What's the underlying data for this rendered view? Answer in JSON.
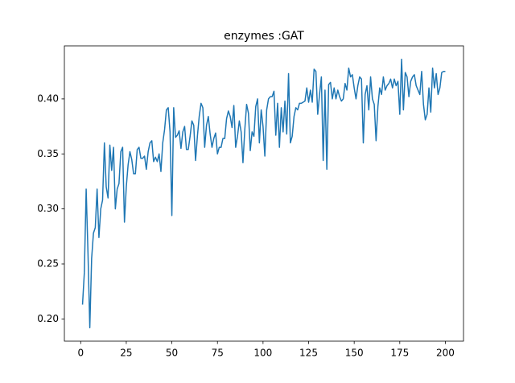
{
  "chart_data": {
    "type": "line",
    "title": "enzymes :GAT",
    "x": [
      1,
      2,
      3,
      4,
      5,
      6,
      7,
      8,
      9,
      10,
      11,
      12,
      13,
      14,
      15,
      16,
      17,
      18,
      19,
      20,
      21,
      22,
      23,
      24,
      25,
      26,
      27,
      28,
      29,
      30,
      31,
      32,
      33,
      34,
      35,
      36,
      37,
      38,
      39,
      40,
      41,
      42,
      43,
      44,
      45,
      46,
      47,
      48,
      49,
      50,
      51,
      52,
      53,
      54,
      55,
      56,
      57,
      58,
      59,
      60,
      61,
      62,
      63,
      64,
      65,
      66,
      67,
      68,
      69,
      70,
      71,
      72,
      73,
      74,
      75,
      76,
      77,
      78,
      79,
      80,
      81,
      82,
      83,
      84,
      85,
      86,
      87,
      88,
      89,
      90,
      91,
      92,
      93,
      94,
      95,
      96,
      97,
      98,
      99,
      100,
      101,
      102,
      103,
      104,
      105,
      106,
      107,
      108,
      109,
      110,
      111,
      112,
      113,
      114,
      115,
      116,
      117,
      118,
      119,
      120,
      121,
      122,
      123,
      124,
      125,
      126,
      127,
      128,
      129,
      130,
      131,
      132,
      133,
      134,
      135,
      136,
      137,
      138,
      139,
      140,
      141,
      142,
      143,
      144,
      145,
      146,
      147,
      148,
      149,
      150,
      151,
      152,
      153,
      154,
      155,
      156,
      157,
      158,
      159,
      160,
      161,
      162,
      163,
      164,
      165,
      166,
      167,
      168,
      169,
      170,
      171,
      172,
      173,
      174,
      175,
      176,
      177,
      178,
      179,
      180,
      181,
      182,
      183,
      184,
      185,
      186,
      187,
      188,
      189,
      190,
      191,
      192,
      193,
      194,
      195,
      196,
      197,
      198,
      199,
      200
    ],
    "series": [
      {
        "color": "#1f77b4",
        "values": [
          0.213,
          0.242,
          0.318,
          0.26,
          0.192,
          0.255,
          0.278,
          0.283,
          0.318,
          0.274,
          0.3,
          0.308,
          0.36,
          0.32,
          0.31,
          0.358,
          0.335,
          0.356,
          0.3,
          0.318,
          0.323,
          0.352,
          0.356,
          0.288,
          0.32,
          0.34,
          0.352,
          0.345,
          0.332,
          0.332,
          0.354,
          0.356,
          0.346,
          0.346,
          0.348,
          0.336,
          0.352,
          0.36,
          0.362,
          0.343,
          0.347,
          0.343,
          0.35,
          0.334,
          0.36,
          0.372,
          0.39,
          0.392,
          0.37,
          0.294,
          0.392,
          0.365,
          0.367,
          0.371,
          0.355,
          0.37,
          0.375,
          0.354,
          0.354,
          0.366,
          0.38,
          0.376,
          0.344,
          0.366,
          0.384,
          0.396,
          0.392,
          0.356,
          0.376,
          0.384,
          0.368,
          0.356,
          0.364,
          0.369,
          0.35,
          0.356,
          0.356,
          0.364,
          0.364,
          0.382,
          0.389,
          0.384,
          0.374,
          0.394,
          0.356,
          0.366,
          0.38,
          0.37,
          0.342,
          0.372,
          0.395,
          0.387,
          0.353,
          0.37,
          0.366,
          0.393,
          0.4,
          0.36,
          0.39,
          0.375,
          0.348,
          0.39,
          0.4,
          0.402,
          0.402,
          0.407,
          0.367,
          0.396,
          0.356,
          0.392,
          0.37,
          0.398,
          0.368,
          0.423,
          0.36,
          0.366,
          0.384,
          0.392,
          0.39,
          0.396,
          0.396,
          0.397,
          0.398,
          0.41,
          0.397,
          0.408,
          0.397,
          0.427,
          0.425,
          0.386,
          0.404,
          0.42,
          0.344,
          0.408,
          0.336,
          0.413,
          0.415,
          0.4,
          0.41,
          0.4,
          0.408,
          0.402,
          0.398,
          0.4,
          0.414,
          0.408,
          0.428,
          0.42,
          0.422,
          0.41,
          0.4,
          0.412,
          0.42,
          0.418,
          0.36,
          0.404,
          0.412,
          0.39,
          0.42,
          0.4,
          0.395,
          0.362,
          0.393,
          0.41,
          0.404,
          0.42,
          0.408,
          0.412,
          0.414,
          0.418,
          0.41,
          0.418,
          0.412,
          0.416,
          0.386,
          0.436,
          0.39,
          0.424,
          0.42,
          0.402,
          0.416,
          0.42,
          0.422,
          0.412,
          0.408,
          0.404,
          0.425,
          0.395,
          0.381,
          0.386,
          0.41,
          0.388,
          0.428,
          0.41,
          0.423,
          0.404,
          0.41,
          0.424,
          0.425,
          0.425
        ]
      }
    ],
    "xlim": [
      -8.95,
      209.95
    ],
    "xticks": [
      0,
      25,
      50,
      75,
      100,
      125,
      150,
      175,
      200
    ],
    "ylim": [
      0.1798,
      0.4482
    ],
    "yticks": [
      {
        "value": 0.2,
        "label": "0.20"
      },
      {
        "value": 0.25,
        "label": "0.25"
      },
      {
        "value": 0.3,
        "label": "0.30"
      },
      {
        "value": 0.35,
        "label": "0.35"
      },
      {
        "value": 0.4,
        "label": "0.40"
      }
    ],
    "grid": false
  }
}
